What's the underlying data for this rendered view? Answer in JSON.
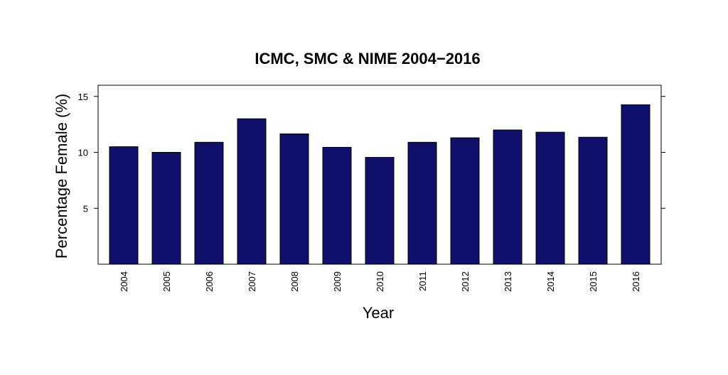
{
  "chart_data": {
    "type": "bar",
    "title": "ICMC, SMC & NIME 2004−2016",
    "xlabel": "Year",
    "ylabel": "Percentage Female (%)",
    "categories": [
      "2004",
      "2005",
      "2006",
      "2007",
      "2008",
      "2009",
      "2010",
      "2011",
      "2012",
      "2013",
      "2014",
      "2015",
      "2016"
    ],
    "values": [
      10.5,
      10.0,
      10.9,
      13.0,
      11.65,
      10.45,
      9.55,
      10.9,
      11.3,
      12.0,
      11.8,
      11.35,
      14.25
    ],
    "ylim": [
      0,
      16
    ],
    "yticks": [
      "5",
      "10",
      "15"
    ],
    "bar_color": "#10106b",
    "grid": false,
    "legend": "none"
  }
}
